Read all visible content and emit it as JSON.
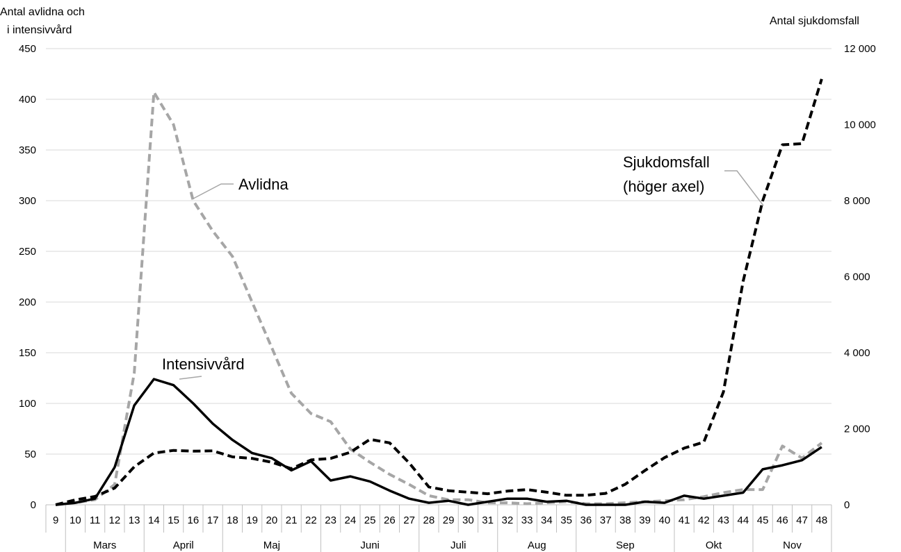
{
  "chart_data": {
    "type": "line",
    "x_label": "Vecka",
    "x": [
      9,
      10,
      11,
      12,
      13,
      14,
      15,
      16,
      17,
      18,
      19,
      20,
      21,
      22,
      23,
      24,
      25,
      26,
      27,
      28,
      29,
      30,
      31,
      32,
      33,
      34,
      35,
      36,
      37,
      38,
      39,
      40,
      41,
      42,
      43,
      44,
      45,
      46,
      47,
      48
    ],
    "months": [
      {
        "name": "Mars",
        "from": 10,
        "to": 13
      },
      {
        "name": "April",
        "from": 14,
        "to": 17
      },
      {
        "name": "Maj",
        "from": 18,
        "to": 22
      },
      {
        "name": "Juni",
        "from": 23,
        "to": 27
      },
      {
        "name": "Juli",
        "from": 28,
        "to": 31
      },
      {
        "name": "Aug",
        "from": 32,
        "to": 35
      },
      {
        "name": "Sep",
        "from": 36,
        "to": 40
      },
      {
        "name": "Okt",
        "from": 41,
        "to": 44
      },
      {
        "name": "Nov",
        "from": 45,
        "to": 48
      }
    ],
    "y_left": {
      "label_line1": "Antal avlidna och",
      "label_line2": "i intensivvård",
      "ticks": [
        0,
        50,
        100,
        150,
        200,
        250,
        300,
        350,
        400,
        450
      ],
      "range": [
        0,
        450
      ]
    },
    "y_right": {
      "label": "Antal sjukdomsfall",
      "ticks": [
        0,
        2000,
        4000,
        6000,
        8000,
        10000,
        12000
      ],
      "tick_labels": [
        "0",
        "2 000",
        "4 000",
        "6 000",
        "8 000",
        "10 000",
        "12 000"
      ],
      "range": [
        0,
        12000
      ]
    },
    "grid": true,
    "series": [
      {
        "name": "Avlidna",
        "axis": "left",
        "color": "#a6a6a6",
        "style": "dashed",
        "values": [
          0,
          2,
          5,
          20,
          130,
          407,
          375,
          300,
          270,
          245,
          200,
          155,
          110,
          90,
          82,
          55,
          42,
          30,
          20,
          9,
          5,
          5,
          2,
          2,
          1,
          2,
          3,
          1,
          1,
          2,
          3,
          4,
          5,
          8,
          12,
          15,
          15,
          58,
          46,
          61
        ]
      },
      {
        "name": "Intensivvård",
        "axis": "left",
        "color": "#000000",
        "style": "solid",
        "values": [
          0,
          2,
          6,
          37,
          98,
          124,
          118,
          100,
          80,
          64,
          51,
          46,
          34,
          43,
          24,
          28,
          23,
          14,
          6,
          2,
          4,
          0,
          3,
          6,
          6,
          3,
          4,
          0,
          0,
          0,
          3,
          2,
          9,
          6,
          9,
          12,
          35,
          39,
          44,
          57
        ]
      },
      {
        "name": "Sjukdomsfall (höger axel)",
        "axis": "right",
        "color": "#000000",
        "style": "dashed",
        "values": [
          0,
          130,
          220,
          440,
          1000,
          1360,
          1430,
          1410,
          1420,
          1260,
          1220,
          1120,
          950,
          1180,
          1220,
          1380,
          1720,
          1630,
          1100,
          470,
          370,
          330,
          290,
          360,
          400,
          330,
          250,
          250,
          300,
          540,
          900,
          1240,
          1490,
          1650,
          2970,
          5880,
          8000,
          9470,
          9500,
          11200
        ]
      }
    ],
    "annotations": {
      "avlidna": "Avlidna",
      "intensivvard": "Intensivvård",
      "sjukdomsfall_line1": "Sjukdomsfall",
      "sjukdomsfall_line2": "(höger axel)"
    }
  }
}
